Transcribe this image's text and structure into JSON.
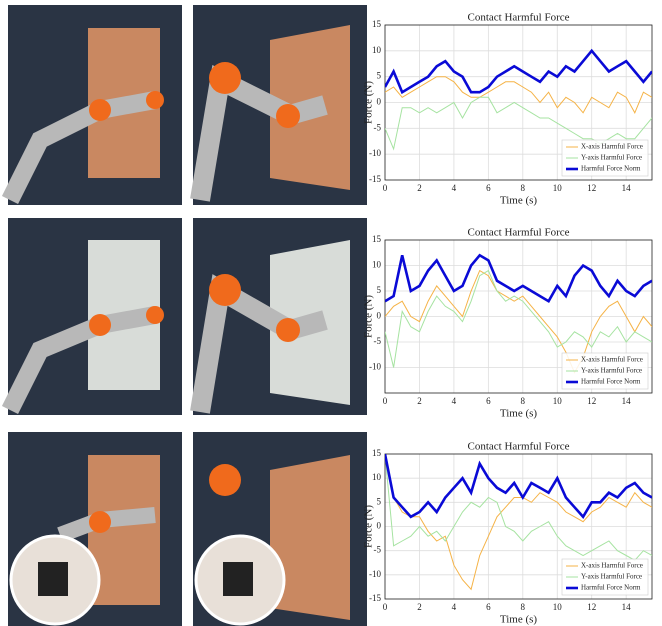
{
  "chart_data": [
    {
      "type": "line",
      "title": "Contact Harmful Force",
      "xlabel": "Time (s)",
      "ylabel": "Force (N)",
      "x": [
        0,
        0.5,
        1,
        1.5,
        2,
        2.5,
        3,
        3.5,
        4,
        4.5,
        5,
        5.5,
        6,
        6.5,
        7,
        7.5,
        8,
        8.5,
        9,
        9.5,
        10,
        10.5,
        11,
        11.5,
        12,
        12.5,
        13,
        13.5,
        14,
        14.5,
        15,
        15.5
      ],
      "xlim": [
        0,
        15.5
      ],
      "xticks": [
        0,
        2,
        4,
        6,
        8,
        10,
        12,
        14
      ],
      "ylim": [
        -15,
        15
      ],
      "yticks": [
        -15,
        -10,
        -5,
        0,
        5,
        10,
        15
      ],
      "grid": true,
      "legend": "lower right",
      "series": [
        {
          "name": "X-axis Harmful Force",
          "color": "#f5b347",
          "values": [
            2,
            3,
            1,
            2,
            3,
            4,
            5,
            5,
            4,
            2,
            1,
            1,
            2,
            3,
            4,
            4,
            3,
            2,
            0,
            2,
            -1,
            1,
            0,
            -2,
            1,
            0,
            -1,
            2,
            1,
            -2,
            2,
            1
          ]
        },
        {
          "name": "Y-axis Harmful Force",
          "color": "#a6e3a1",
          "values": [
            -5,
            -9,
            -1,
            -1,
            -2,
            -1,
            -2,
            -1,
            0,
            -3,
            0,
            1,
            1,
            -2,
            -1,
            0,
            -1,
            -2,
            -3,
            -3,
            -4,
            -5,
            -6,
            -7,
            -7,
            -8,
            -7,
            -6,
            -7,
            -7,
            -5,
            -3
          ]
        },
        {
          "name": "Harmful Force Norm",
          "color": "#0a0ad6",
          "values": [
            3,
            6,
            2,
            3,
            4,
            5,
            7,
            8,
            6,
            5,
            2,
            2,
            3,
            5,
            6,
            7,
            6,
            5,
            4,
            6,
            5,
            7,
            6,
            8,
            10,
            8,
            6,
            7,
            8,
            6,
            4,
            6
          ]
        }
      ]
    },
    {
      "type": "line",
      "title": "Contact Harmful Force",
      "xlabel": "Time (s)",
      "ylabel": "Force (N)",
      "x": [
        0,
        0.5,
        1,
        1.5,
        2,
        2.5,
        3,
        3.5,
        4,
        4.5,
        5,
        5.5,
        6,
        6.5,
        7,
        7.5,
        8,
        8.5,
        9,
        9.5,
        10,
        10.5,
        11,
        11.5,
        12,
        12.5,
        13,
        13.5,
        14,
        14.5,
        15,
        15.5
      ],
      "xlim": [
        0,
        15.5
      ],
      "xticks": [
        0,
        2,
        4,
        6,
        8,
        10,
        12,
        14
      ],
      "ylim": [
        -15,
        15
      ],
      "yticks": [
        -10,
        -5,
        0,
        5,
        10,
        15
      ],
      "grid": true,
      "legend": "lower right",
      "series": [
        {
          "name": "X-axis Harmful Force",
          "color": "#f5b347",
          "values": [
            0,
            2,
            3,
            0,
            -1,
            3,
            6,
            4,
            2,
            0,
            5,
            9,
            8,
            5,
            4,
            3,
            4,
            2,
            0,
            -2,
            -4,
            -7,
            -11,
            -8,
            -3,
            0,
            2,
            3,
            0,
            -3,
            0,
            -2
          ]
        },
        {
          "name": "Y-axis Harmful Force",
          "color": "#a6e3a1",
          "values": [
            -3,
            -10,
            1,
            -2,
            -3,
            1,
            4,
            2,
            1,
            -1,
            3,
            8,
            9,
            5,
            3,
            4,
            3,
            1,
            -1,
            -3,
            -6,
            -5,
            -3,
            -4,
            -6,
            -3,
            -4,
            -2,
            -5,
            -3,
            -4,
            -5
          ]
        },
        {
          "name": "Harmful Force Norm",
          "color": "#0a0ad6",
          "values": [
            3,
            4,
            12,
            5,
            6,
            9,
            11,
            8,
            5,
            6,
            10,
            12,
            11,
            7,
            6,
            5,
            6,
            5,
            4,
            3,
            6,
            4,
            8,
            10,
            9,
            6,
            4,
            7,
            5,
            4,
            6,
            7
          ]
        }
      ]
    },
    {
      "type": "line",
      "title": "Contact Harmful Force",
      "xlabel": "Time (s)",
      "ylabel": "Force (N)",
      "x": [
        0,
        0.5,
        1,
        1.5,
        2,
        2.5,
        3,
        3.5,
        4,
        4.5,
        5,
        5.5,
        6,
        6.5,
        7,
        7.5,
        8,
        8.5,
        9,
        9.5,
        10,
        10.5,
        11,
        11.5,
        12,
        12.5,
        13,
        13.5,
        14,
        14.5,
        15,
        15.5
      ],
      "xlim": [
        0,
        15.5
      ],
      "xticks": [
        0,
        2,
        4,
        6,
        8,
        10,
        12,
        14
      ],
      "ylim": [
        -15,
        15
      ],
      "yticks": [
        -15,
        -10,
        -5,
        0,
        5,
        10,
        15
      ],
      "grid": true,
      "legend": "lower right",
      "series": [
        {
          "name": "X-axis Harmful Force",
          "color": "#f5b347",
          "values": [
            15,
            6,
            3,
            2,
            2,
            -1,
            -3,
            -2,
            -8,
            -11,
            -13,
            -6,
            -2,
            2,
            4,
            6,
            6,
            5,
            7,
            6,
            5,
            3,
            2,
            1,
            3,
            4,
            6,
            5,
            4,
            7,
            5,
            4
          ]
        },
        {
          "name": "Y-axis Harmful Force",
          "color": "#a6e3a1",
          "values": [
            15,
            -4,
            -3,
            -2,
            0,
            -2,
            -1,
            -3,
            0,
            3,
            5,
            4,
            6,
            5,
            0,
            -1,
            -3,
            -1,
            0,
            1,
            -2,
            -4,
            -5,
            -6,
            -5,
            -4,
            -3,
            -5,
            -6,
            -7,
            -5,
            -6
          ]
        },
        {
          "name": "Harmful Force Norm",
          "color": "#0a0ad6",
          "values": [
            15,
            6,
            4,
            2,
            3,
            5,
            3,
            6,
            8,
            10,
            7,
            13,
            10,
            8,
            7,
            9,
            6,
            9,
            8,
            7,
            10,
            6,
            4,
            2,
            5,
            5,
            7,
            6,
            8,
            9,
            7,
            6
          ]
        }
      ]
    }
  ]
}
